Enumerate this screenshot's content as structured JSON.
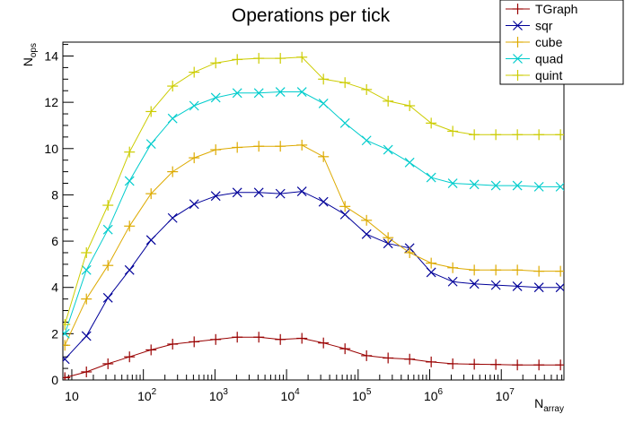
{
  "chart_data": {
    "type": "line",
    "title": "Operations per tick",
    "xlabel": {
      "base": "N",
      "sub": "array"
    },
    "ylabel": {
      "base": "N",
      "sub": "ops"
    },
    "x_scale": "log",
    "xlim": [
      7.5,
      75000000
    ],
    "ylim": [
      0,
      14.6
    ],
    "grid": false,
    "legend_position": "top-right",
    "y_ticks": [
      0,
      2,
      4,
      6,
      8,
      10,
      12,
      14
    ],
    "x_ticks": [
      {
        "base": "10",
        "exp": ""
      },
      {
        "base": "10",
        "exp": "2"
      },
      {
        "base": "10",
        "exp": "3"
      },
      {
        "base": "10",
        "exp": "4"
      },
      {
        "base": "10",
        "exp": "5"
      },
      {
        "base": "10",
        "exp": "6"
      },
      {
        "base": "10",
        "exp": "7"
      }
    ],
    "x": [
      8,
      16,
      32,
      64,
      128,
      256,
      512,
      1024,
      2048,
      4096,
      8192,
      16384,
      32768,
      65536,
      131072,
      262144,
      524288,
      1048576,
      2097152,
      4194304,
      8388608,
      16777216,
      33554432,
      67108864
    ],
    "series": [
      {
        "name": "TGraph",
        "color": "#990000",
        "marker": "plus",
        "values": [
          0.1,
          0.35,
          0.7,
          1.0,
          1.3,
          1.55,
          1.65,
          1.75,
          1.85,
          1.85,
          1.75,
          1.8,
          1.6,
          1.35,
          1.05,
          0.95,
          0.9,
          0.78,
          0.7,
          0.68,
          0.67,
          0.65,
          0.65,
          0.65
        ]
      },
      {
        "name": "sqr",
        "color": "#000099",
        "marker": "cross",
        "values": [
          0.9,
          1.9,
          3.55,
          4.75,
          6.05,
          7.0,
          7.6,
          7.95,
          8.1,
          8.1,
          8.05,
          8.15,
          7.7,
          7.15,
          6.3,
          5.9,
          5.7,
          4.65,
          4.25,
          4.15,
          4.1,
          4.05,
          4.0,
          4.0
        ]
      },
      {
        "name": "cube",
        "color": "#ddaa00",
        "marker": "plus",
        "values": [
          1.5,
          3.5,
          4.95,
          6.65,
          8.05,
          9.0,
          9.6,
          9.95,
          10.05,
          10.1,
          10.1,
          10.15,
          9.65,
          7.5,
          6.9,
          6.15,
          5.5,
          5.05,
          4.85,
          4.75,
          4.75,
          4.75,
          4.7,
          4.7
        ]
      },
      {
        "name": "quad",
        "color": "#00cccc",
        "marker": "cross",
        "values": [
          2.0,
          4.75,
          6.5,
          8.6,
          10.2,
          11.3,
          11.85,
          12.2,
          12.4,
          12.4,
          12.45,
          12.45,
          11.95,
          11.1,
          10.35,
          9.95,
          9.4,
          8.75,
          8.5,
          8.45,
          8.4,
          8.4,
          8.35,
          8.35
        ]
      },
      {
        "name": "quint",
        "color": "#cccc00",
        "marker": "plus",
        "values": [
          2.4,
          5.5,
          7.55,
          9.85,
          11.6,
          12.7,
          13.3,
          13.7,
          13.85,
          13.9,
          13.9,
          13.95,
          13.0,
          12.85,
          12.55,
          12.05,
          11.85,
          11.1,
          10.75,
          10.6,
          10.6,
          10.6,
          10.6,
          10.6
        ]
      }
    ]
  }
}
